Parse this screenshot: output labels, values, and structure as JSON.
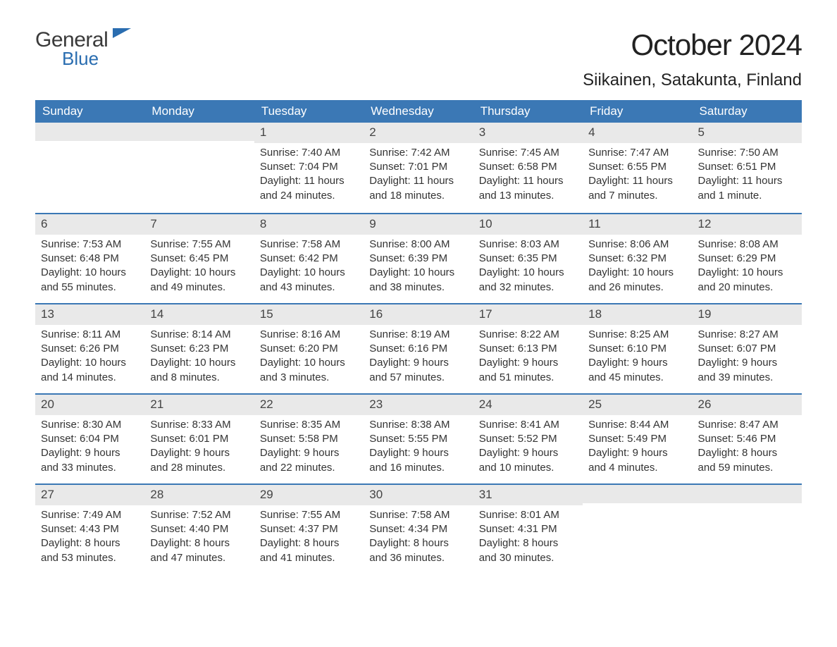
{
  "logo": {
    "text_main": "General",
    "text_sub": "Blue",
    "main_color": "#3a3a3a",
    "accent_color": "#2a6db0"
  },
  "title": "October 2024",
  "location": "Siikainen, Satakunta, Finland",
  "colors": {
    "header_bg": "#3b78b5",
    "header_text": "#ffffff",
    "daynum_bg": "#e9e9e9",
    "week_border": "#3b78b5",
    "body_text": "#333333",
    "page_bg": "#ffffff"
  },
  "typography": {
    "title_fontsize_pt": 32,
    "location_fontsize_pt": 18,
    "weekday_fontsize_pt": 13,
    "daynum_fontsize_pt": 13,
    "body_fontsize_pt": 11,
    "font_family": "Arial"
  },
  "weekdays": [
    "Sunday",
    "Monday",
    "Tuesday",
    "Wednesday",
    "Thursday",
    "Friday",
    "Saturday"
  ],
  "weeks": [
    [
      null,
      null,
      {
        "day": "1",
        "sunrise": "Sunrise: 7:40 AM",
        "sunset": "Sunset: 7:04 PM",
        "daylight1": "Daylight: 11 hours",
        "daylight2": "and 24 minutes."
      },
      {
        "day": "2",
        "sunrise": "Sunrise: 7:42 AM",
        "sunset": "Sunset: 7:01 PM",
        "daylight1": "Daylight: 11 hours",
        "daylight2": "and 18 minutes."
      },
      {
        "day": "3",
        "sunrise": "Sunrise: 7:45 AM",
        "sunset": "Sunset: 6:58 PM",
        "daylight1": "Daylight: 11 hours",
        "daylight2": "and 13 minutes."
      },
      {
        "day": "4",
        "sunrise": "Sunrise: 7:47 AM",
        "sunset": "Sunset: 6:55 PM",
        "daylight1": "Daylight: 11 hours",
        "daylight2": "and 7 minutes."
      },
      {
        "day": "5",
        "sunrise": "Sunrise: 7:50 AM",
        "sunset": "Sunset: 6:51 PM",
        "daylight1": "Daylight: 11 hours",
        "daylight2": "and 1 minute."
      }
    ],
    [
      {
        "day": "6",
        "sunrise": "Sunrise: 7:53 AM",
        "sunset": "Sunset: 6:48 PM",
        "daylight1": "Daylight: 10 hours",
        "daylight2": "and 55 minutes."
      },
      {
        "day": "7",
        "sunrise": "Sunrise: 7:55 AM",
        "sunset": "Sunset: 6:45 PM",
        "daylight1": "Daylight: 10 hours",
        "daylight2": "and 49 minutes."
      },
      {
        "day": "8",
        "sunrise": "Sunrise: 7:58 AM",
        "sunset": "Sunset: 6:42 PM",
        "daylight1": "Daylight: 10 hours",
        "daylight2": "and 43 minutes."
      },
      {
        "day": "9",
        "sunrise": "Sunrise: 8:00 AM",
        "sunset": "Sunset: 6:39 PM",
        "daylight1": "Daylight: 10 hours",
        "daylight2": "and 38 minutes."
      },
      {
        "day": "10",
        "sunrise": "Sunrise: 8:03 AM",
        "sunset": "Sunset: 6:35 PM",
        "daylight1": "Daylight: 10 hours",
        "daylight2": "and 32 minutes."
      },
      {
        "day": "11",
        "sunrise": "Sunrise: 8:06 AM",
        "sunset": "Sunset: 6:32 PM",
        "daylight1": "Daylight: 10 hours",
        "daylight2": "and 26 minutes."
      },
      {
        "day": "12",
        "sunrise": "Sunrise: 8:08 AM",
        "sunset": "Sunset: 6:29 PM",
        "daylight1": "Daylight: 10 hours",
        "daylight2": "and 20 minutes."
      }
    ],
    [
      {
        "day": "13",
        "sunrise": "Sunrise: 8:11 AM",
        "sunset": "Sunset: 6:26 PM",
        "daylight1": "Daylight: 10 hours",
        "daylight2": "and 14 minutes."
      },
      {
        "day": "14",
        "sunrise": "Sunrise: 8:14 AM",
        "sunset": "Sunset: 6:23 PM",
        "daylight1": "Daylight: 10 hours",
        "daylight2": "and 8 minutes."
      },
      {
        "day": "15",
        "sunrise": "Sunrise: 8:16 AM",
        "sunset": "Sunset: 6:20 PM",
        "daylight1": "Daylight: 10 hours",
        "daylight2": "and 3 minutes."
      },
      {
        "day": "16",
        "sunrise": "Sunrise: 8:19 AM",
        "sunset": "Sunset: 6:16 PM",
        "daylight1": "Daylight: 9 hours",
        "daylight2": "and 57 minutes."
      },
      {
        "day": "17",
        "sunrise": "Sunrise: 8:22 AM",
        "sunset": "Sunset: 6:13 PM",
        "daylight1": "Daylight: 9 hours",
        "daylight2": "and 51 minutes."
      },
      {
        "day": "18",
        "sunrise": "Sunrise: 8:25 AM",
        "sunset": "Sunset: 6:10 PM",
        "daylight1": "Daylight: 9 hours",
        "daylight2": "and 45 minutes."
      },
      {
        "day": "19",
        "sunrise": "Sunrise: 8:27 AM",
        "sunset": "Sunset: 6:07 PM",
        "daylight1": "Daylight: 9 hours",
        "daylight2": "and 39 minutes."
      }
    ],
    [
      {
        "day": "20",
        "sunrise": "Sunrise: 8:30 AM",
        "sunset": "Sunset: 6:04 PM",
        "daylight1": "Daylight: 9 hours",
        "daylight2": "and 33 minutes."
      },
      {
        "day": "21",
        "sunrise": "Sunrise: 8:33 AM",
        "sunset": "Sunset: 6:01 PM",
        "daylight1": "Daylight: 9 hours",
        "daylight2": "and 28 minutes."
      },
      {
        "day": "22",
        "sunrise": "Sunrise: 8:35 AM",
        "sunset": "Sunset: 5:58 PM",
        "daylight1": "Daylight: 9 hours",
        "daylight2": "and 22 minutes."
      },
      {
        "day": "23",
        "sunrise": "Sunrise: 8:38 AM",
        "sunset": "Sunset: 5:55 PM",
        "daylight1": "Daylight: 9 hours",
        "daylight2": "and 16 minutes."
      },
      {
        "day": "24",
        "sunrise": "Sunrise: 8:41 AM",
        "sunset": "Sunset: 5:52 PM",
        "daylight1": "Daylight: 9 hours",
        "daylight2": "and 10 minutes."
      },
      {
        "day": "25",
        "sunrise": "Sunrise: 8:44 AM",
        "sunset": "Sunset: 5:49 PM",
        "daylight1": "Daylight: 9 hours",
        "daylight2": "and 4 minutes."
      },
      {
        "day": "26",
        "sunrise": "Sunrise: 8:47 AM",
        "sunset": "Sunset: 5:46 PM",
        "daylight1": "Daylight: 8 hours",
        "daylight2": "and 59 minutes."
      }
    ],
    [
      {
        "day": "27",
        "sunrise": "Sunrise: 7:49 AM",
        "sunset": "Sunset: 4:43 PM",
        "daylight1": "Daylight: 8 hours",
        "daylight2": "and 53 minutes."
      },
      {
        "day": "28",
        "sunrise": "Sunrise: 7:52 AM",
        "sunset": "Sunset: 4:40 PM",
        "daylight1": "Daylight: 8 hours",
        "daylight2": "and 47 minutes."
      },
      {
        "day": "29",
        "sunrise": "Sunrise: 7:55 AM",
        "sunset": "Sunset: 4:37 PM",
        "daylight1": "Daylight: 8 hours",
        "daylight2": "and 41 minutes."
      },
      {
        "day": "30",
        "sunrise": "Sunrise: 7:58 AM",
        "sunset": "Sunset: 4:34 PM",
        "daylight1": "Daylight: 8 hours",
        "daylight2": "and 36 minutes."
      },
      {
        "day": "31",
        "sunrise": "Sunrise: 8:01 AM",
        "sunset": "Sunset: 4:31 PM",
        "daylight1": "Daylight: 8 hours",
        "daylight2": "and 30 minutes."
      },
      null,
      null
    ]
  ]
}
